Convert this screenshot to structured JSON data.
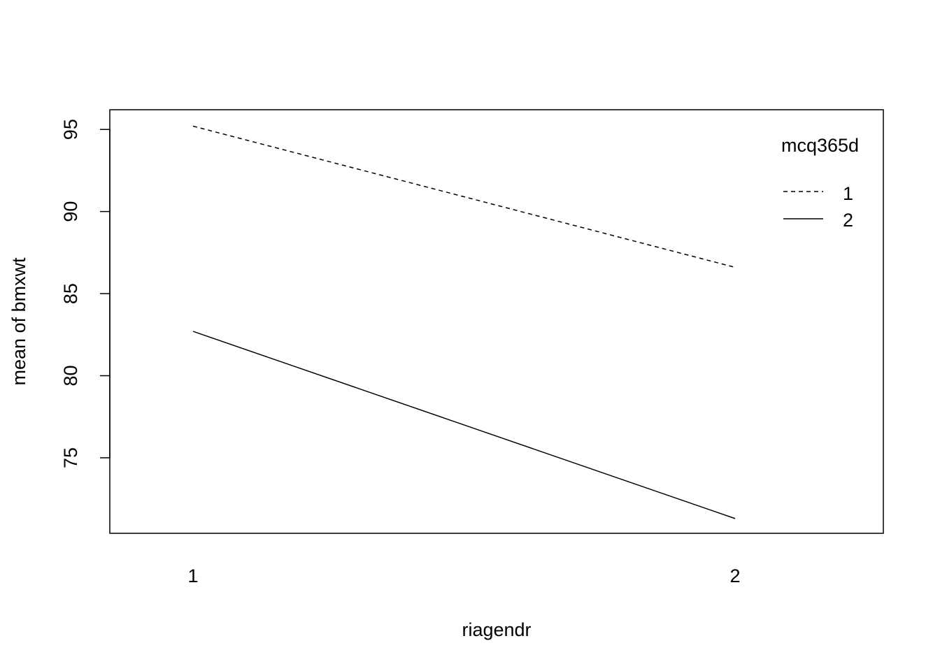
{
  "chart_data": {
    "type": "line",
    "title": "",
    "xlabel": "riagendr",
    "ylabel": "mean of  bmxwt",
    "categories": [
      "1",
      "2"
    ],
    "yticks": [
      75,
      80,
      85,
      90,
      95
    ],
    "ylim": [
      70.4,
      96.2
    ],
    "grid": false,
    "legend": {
      "title": "mcq365d",
      "placement": "top-right",
      "entries": [
        "1",
        "2"
      ]
    },
    "series": [
      {
        "name": "1",
        "values": [
          95.2,
          86.6
        ],
        "line_style": "dashed"
      },
      {
        "name": "2",
        "values": [
          82.7,
          71.3
        ],
        "line_style": "solid"
      }
    ],
    "colors": {
      "line": "#000000",
      "frame": "#000000"
    }
  }
}
